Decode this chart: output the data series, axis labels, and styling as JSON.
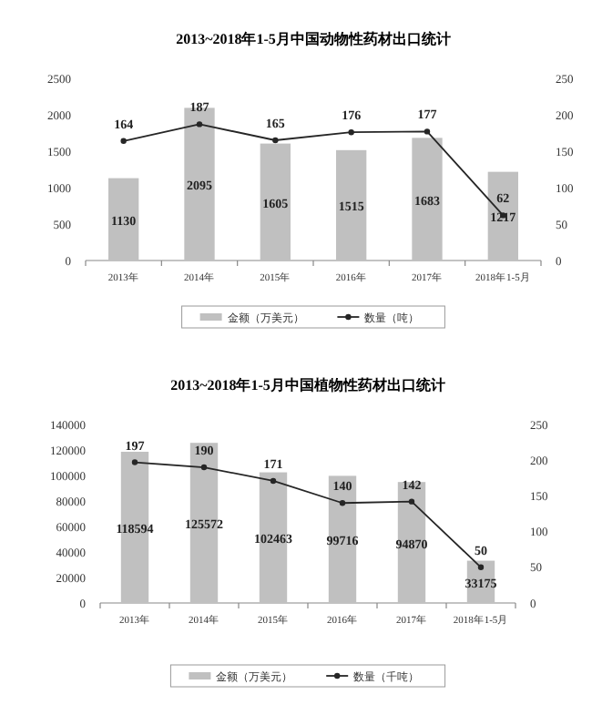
{
  "chart_data": [
    {
      "type": "bar",
      "title": "2013~2018年1-5月中国动物性药材出口统计",
      "categories": [
        "2013年",
        "2014年",
        "2015年",
        "2016年",
        "2017年",
        "2018年1-5月"
      ],
      "series": [
        {
          "name": "金额（万美元）",
          "color": "#c0c0c0",
          "values": [
            1130,
            2095,
            1605,
            1515,
            1683,
            1217
          ]
        },
        {
          "name": "数量（吨）",
          "type": "line",
          "axis": "y2",
          "color": "#262626",
          "marker": "circle",
          "values": [
            164,
            187,
            165,
            176,
            177,
            62
          ]
        }
      ],
      "ylim": [
        0,
        2500
      ],
      "yticks": [
        0,
        500,
        1000,
        1500,
        2000,
        2500
      ],
      "y2lim": [
        0,
        250
      ],
      "y2ticks": [
        0,
        50,
        100,
        150,
        200,
        250
      ],
      "data_labels": true,
      "legend": "bottom",
      "grid": false
    },
    {
      "type": "bar",
      "title": "2013~2018年1-5月中国植物性药材出口统计",
      "categories": [
        "2013年",
        "2014年",
        "2015年",
        "2016年",
        "2017年",
        "2018年1-5月"
      ],
      "series": [
        {
          "name": "金额（万美元）",
          "color": "#c0c0c0",
          "values": [
            118594,
            125572,
            102463,
            99716,
            94870,
            33175
          ]
        },
        {
          "name": "数量（千吨）",
          "type": "line",
          "axis": "y2",
          "color": "#262626",
          "marker": "circle",
          "values": [
            197,
            190,
            171,
            140,
            142,
            50
          ]
        }
      ],
      "ylim": [
        0,
        140000
      ],
      "yticks": [
        0,
        20000,
        40000,
        60000,
        80000,
        100000,
        120000,
        140000
      ],
      "y2lim": [
        0,
        250
      ],
      "y2ticks": [
        0,
        50,
        100,
        150,
        200,
        250
      ],
      "data_labels": true,
      "legend": "bottom",
      "grid": false
    }
  ]
}
